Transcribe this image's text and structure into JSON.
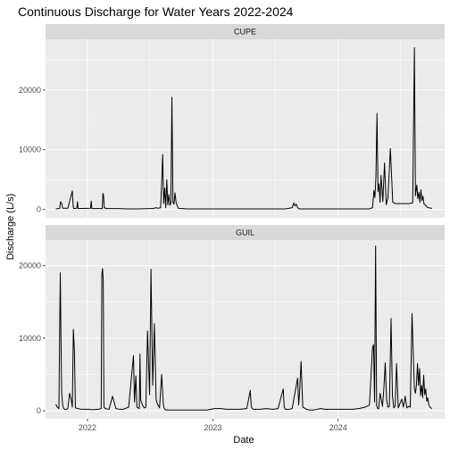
{
  "chart_data": {
    "type": "line",
    "title": "Continuous Discharge for Water Years 2022-2024",
    "xlabel": "Date",
    "ylabel": "Discharge (L/s)",
    "x_tick_labels": [
      "2022",
      "2023",
      "2024"
    ],
    "x_ticks": [
      "2022-01-01",
      "2023-01-01",
      "2024-01-01"
    ],
    "xlim": [
      "2021-09-01",
      "2024-11-06"
    ],
    "grid": true,
    "colors": {
      "panel_background": "#ebebeb",
      "strip_background": "#d9d9d9",
      "grid": "#ffffff",
      "line": "#000000"
    },
    "panels": [
      {
        "facet": "CUPE",
        "ylim": [
          -1400,
          28500
        ],
        "y_ticks": [
          0,
          10000,
          20000
        ],
        "y_tick_labels": [
          "0",
          "10000",
          "20000"
        ],
        "series": [
          {
            "x": [
              "2021-10-01",
              "2021-10-12",
              "2021-10-15",
              "2021-10-18",
              "2021-10-21",
              "2021-11-05",
              "2021-11-18",
              "2021-11-20",
              "2021-11-22",
              "2021-12-01",
              "2021-12-03",
              "2021-12-05",
              "2022-01-10",
              "2022-01-12",
              "2022-01-14",
              "2022-02-13",
              "2022-02-15",
              "2022-02-17",
              "2022-02-19",
              "2022-02-25",
              "2022-03-28",
              "2022-04-28",
              "2022-05-28",
              "2022-06-28",
              "2022-07-10",
              "2022-07-20",
              "2022-07-26",
              "2022-08-02",
              "2022-08-05",
              "2022-08-08",
              "2022-08-11",
              "2022-08-14",
              "2022-08-17",
              "2022-08-20",
              "2022-08-23",
              "2022-08-26",
              "2022-08-29",
              "2022-09-01",
              "2022-09-04",
              "2022-09-07",
              "2022-09-10",
              "2022-09-13",
              "2022-09-16",
              "2022-09-19",
              "2022-09-23",
              "2022-10-01",
              "2022-10-10",
              "2022-10-12",
              "2022-10-15",
              "2022-10-18",
              "2022-10-25",
              "2022-11-20",
              "2022-12-20",
              "2023-01-20",
              "2023-03-01",
              "2023-04-01",
              "2023-05-01",
              "2023-06-01",
              "2023-07-01",
              "2023-08-01",
              "2023-08-20",
              "2023-08-25",
              "2023-08-28",
              "2023-09-01",
              "2023-09-05",
              "2023-09-10",
              "2023-10-10",
              "2023-11-10",
              "2023-12-10",
              "2024-01-10",
              "2024-02-10",
              "2024-03-10",
              "2024-04-01",
              "2024-04-10",
              "2024-04-12",
              "2024-04-14",
              "2024-04-17",
              "2024-04-20",
              "2024-04-23",
              "2024-04-26",
              "2024-04-29",
              "2024-05-02",
              "2024-05-05",
              "2024-05-10",
              "2024-05-15",
              "2024-05-20",
              "2024-05-25",
              "2024-06-01",
              "2024-06-08",
              "2024-06-15",
              "2024-06-25",
              "2024-07-05",
              "2024-07-15",
              "2024-07-25",
              "2024-08-05",
              "2024-08-10",
              "2024-08-13",
              "2024-08-17",
              "2024-08-20",
              "2024-08-23",
              "2024-08-26",
              "2024-08-29",
              "2024-09-01",
              "2024-09-04",
              "2024-09-07",
              "2024-09-10",
              "2024-09-13",
              "2024-09-16",
              "2024-09-19",
              "2024-09-22",
              "2024-09-25",
              "2024-09-30"
            ],
            "y": [
              120,
              150,
              1300,
              1000,
              200,
              200,
              3100,
              900,
              150,
              200,
              1300,
              150,
              200,
              1400,
              150,
              150,
              2700,
              2200,
              300,
              150,
              150,
              100,
              100,
              150,
              150,
              300,
              200,
              300,
              4200,
              9200,
              1000,
              3600,
              300,
              5000,
              800,
              2500,
              700,
              1100,
              18800,
              1200,
              900,
              2800,
              1200,
              700,
              200,
              150,
              150,
              100,
              100,
              100,
              100,
              100,
              100,
              100,
              100,
              100,
              100,
              100,
              100,
              100,
              300,
              1100,
              600,
              900,
              300,
              100,
              100,
              100,
              100,
              100,
              100,
              100,
              100,
              300,
              1700,
              3200,
              2000,
              5600,
              16100,
              3000,
              4300,
              1200,
              5700,
              1300,
              7800,
              800,
              2000,
              10200,
              1200,
              1000,
              1000,
              1000,
              1000,
              1000,
              1100,
              27100,
              2300,
              4100,
              1800,
              2900,
              1200,
              3300,
              1500,
              2200,
              900,
              800,
              600,
              400,
              300,
              300,
              200,
              200
            ]
          }
        ]
      },
      {
        "facet": "GUIL",
        "ylim": [
          -1100,
          23500
        ],
        "y_ticks": [
          0,
          10000,
          20000
        ],
        "y_tick_labels": [
          "0",
          "10000",
          "20000"
        ],
        "series": [
          {
            "x": [
              "2021-10-01",
              "2021-10-05",
              "2021-10-10",
              "2021-10-12",
              "2021-10-14",
              "2021-10-16",
              "2021-10-18",
              "2021-10-21",
              "2021-10-24",
              "2021-10-27",
              "2021-10-30",
              "2021-11-05",
              "2021-11-10",
              "2021-11-15",
              "2021-11-18",
              "2021-11-21",
              "2021-11-24",
              "2021-11-27",
              "2021-12-05",
              "2021-12-15",
              "2022-01-05",
              "2022-01-15",
              "2022-02-01",
              "2022-02-10",
              "2022-02-12",
              "2022-02-14",
              "2022-02-16",
              "2022-02-18",
              "2022-02-22",
              "2022-03-05",
              "2022-03-15",
              "2022-03-25",
              "2022-04-05",
              "2022-04-15",
              "2022-05-01",
              "2022-05-15",
              "2022-05-18",
              "2022-05-22",
              "2022-05-25",
              "2022-06-01",
              "2022-06-03",
              "2022-06-05",
              "2022-06-10",
              "2022-06-15",
              "2022-06-20",
              "2022-06-25",
              "2022-07-01",
              "2022-07-05",
              "2022-07-10",
              "2022-07-15",
              "2022-07-20",
              "2022-07-25",
              "2022-07-30",
              "2022-08-05",
              "2022-08-10",
              "2022-08-12",
              "2022-08-14",
              "2022-08-16",
              "2022-08-19",
              "2022-08-22",
              "2022-08-25",
              "2022-08-28",
              "2022-09-03",
              "2022-09-08",
              "2022-09-13",
              "2022-09-18",
              "2022-09-20",
              "2022-09-22",
              "2022-09-24",
              "2022-09-28",
              "2022-10-01",
              "2022-10-04",
              "2022-11-27",
              "2022-12-02",
              "2022-12-15",
              "2023-01-05",
              "2023-01-25",
              "2023-02-10",
              "2023-03-01",
              "2023-03-20",
              "2023-04-10",
              "2023-04-20",
              "2023-04-23",
              "2023-04-26",
              "2023-04-29",
              "2023-05-05",
              "2023-05-20",
              "2023-06-05",
              "2023-06-25",
              "2023-07-10",
              "2023-07-25",
              "2023-07-28",
              "2023-07-31",
              "2023-08-10",
              "2023-08-20",
              "2023-09-05",
              "2023-09-08",
              "2023-09-11",
              "2023-09-15",
              "2023-09-20",
              "2023-10-01",
              "2023-10-10",
              "2023-10-13",
              "2023-10-16",
              "2023-10-20",
              "2023-11-01",
              "2023-11-10",
              "2023-11-25",
              "2023-12-10",
              "2023-12-25",
              "2024-01-10",
              "2024-01-25",
              "2024-02-10",
              "2024-03-01",
              "2024-03-20",
              "2024-04-01",
              "2024-04-10",
              "2024-04-13",
              "2024-04-16",
              "2024-04-19",
              "2024-04-22",
              "2024-04-25",
              "2024-04-28",
              "2024-05-02",
              "2024-05-05",
              "2024-05-09",
              "2024-05-13",
              "2024-05-17",
              "2024-05-21",
              "2024-05-25",
              "2024-05-29",
              "2024-06-03",
              "2024-06-07",
              "2024-06-11",
              "2024-06-15",
              "2024-06-19",
              "2024-06-24",
              "2024-06-29",
              "2024-07-04",
              "2024-07-09",
              "2024-07-14",
              "2024-07-19",
              "2024-07-24",
              "2024-07-29",
              "2024-08-03",
              "2024-08-07",
              "2024-08-10",
              "2024-08-13",
              "2024-08-16",
              "2024-08-19",
              "2024-08-22",
              "2024-08-25",
              "2024-08-28",
              "2024-08-31",
              "2024-09-03",
              "2024-09-06",
              "2024-09-09",
              "2024-09-12",
              "2024-09-15",
              "2024-09-18",
              "2024-09-21",
              "2024-09-24",
              "2024-09-27",
              "2024-09-30"
            ],
            "y": [
              900,
              500,
              300,
              10500,
              19000,
              9800,
              2500,
              700,
              300,
              200,
              150,
              300,
              2400,
              1500,
              500,
              11200,
              8400,
              400,
              300,
              200,
              200,
              150,
              200,
              300,
              18800,
              19600,
              17900,
              500,
              300,
              200,
              2000,
              300,
              200,
              200,
              500,
              7600,
              1200,
              4800,
              500,
              300,
              7800,
              1500,
              800,
              400,
              500,
              11000,
              2200,
              19500,
              3500,
              12000,
              1500,
              800,
              400,
              5000,
              900,
              400,
              200,
              150,
              100,
              100,
              100,
              100,
              100,
              100,
              100,
              100,
              100,
              100,
              100,
              100,
              100,
              100,
              100,
              100,
              100,
              300,
              300,
              200,
              200,
              200,
              300,
              2800,
              600,
              300,
              200,
              200,
              200,
              300,
              200,
              300,
              3000,
              500,
              200,
              200,
              300,
              4500,
              800,
              2800,
              6800,
              500,
              200,
              100,
              100,
              100,
              100,
              200,
              300,
              200,
              200,
              200,
              200,
              200,
              200,
              300,
              500,
              800,
              8700,
              9100,
              1200,
              22700,
              700,
              300,
              300,
              2400,
              1700,
              600,
              3000,
              6600,
              1500,
              500,
              600,
              12700,
              2100,
              400,
              700,
              6500,
              400,
              1000,
              1600,
              500,
              2000,
              400,
              600,
              500,
              13400,
              7300,
              3000,
              2400,
              3600,
              6500,
              3500,
              5800,
              2100,
              3500,
              1800,
              4900,
              2200,
              3000,
              1300,
              1800,
              800,
              500,
              400,
              300
            ]
          }
        ]
      }
    ]
  }
}
